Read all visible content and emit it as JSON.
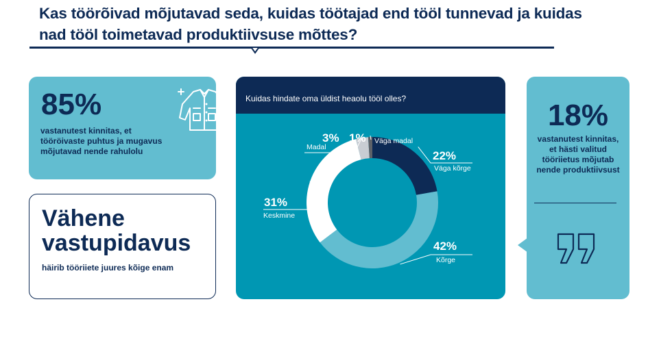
{
  "header": {
    "title": "Kas töörõivad mõjutavad seda, kuidas töötajad end tööl tunnevad ja kuidas nad tööl toimetavad produktiivsuse mõttes?"
  },
  "stat_85": {
    "value": "85%",
    "text": "vastanutest kinnitas, et tööröivaste puhtus ja mugavus mõjutavad nende rahulolu",
    "icon": "workwear-jacket-icon"
  },
  "resistance": {
    "title": "Vähene vastupidavus",
    "text": "häirib tööriiete juures kõige enam"
  },
  "stat_18": {
    "value": "18%",
    "text": "vastanutest kinnitas, et hästi valitud tööriietus mõjutab nende produktiivsust",
    "icon": "quote-icon"
  },
  "colors": {
    "navy": "#0d2a55",
    "light_teal": "#62bdd0",
    "teal": "#0097b3",
    "white": "#ffffff",
    "light_gray": "#c9cdd3",
    "dark_gray": "#5d6168"
  },
  "chart_data": {
    "type": "pie",
    "variant": "donut",
    "title": "Kuidas hindate oma üldist heaolu tööl olles?",
    "categories": [
      "Väga kõrge",
      "Kõrge",
      "Keskmine",
      "Madal",
      "Väga madal"
    ],
    "values": [
      22,
      42,
      31,
      3,
      1
    ],
    "value_labels": [
      "22%",
      "42%",
      "31%",
      "3%",
      "1%"
    ],
    "colors": [
      "#0d2a55",
      "#62bdd0",
      "#ffffff",
      "#c9cdd3",
      "#5d6168"
    ]
  }
}
